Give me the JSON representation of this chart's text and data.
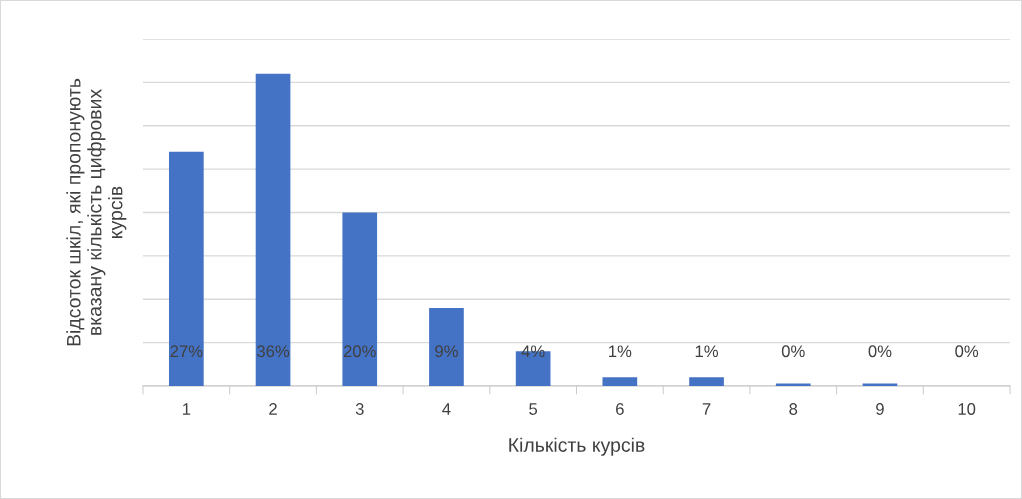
{
  "chart_data": {
    "type": "bar",
    "xlabel": "Кількість курсів",
    "ylabel": "Відсоток шкіл, які пропонують\nвказану кількість цифрових\nкурсів",
    "categories": [
      "1",
      "2",
      "3",
      "4",
      "5",
      "6",
      "7",
      "8",
      "9",
      "10"
    ],
    "values": [
      27,
      36,
      20,
      9,
      4,
      1,
      1,
      0.3,
      0.3,
      0
    ],
    "value_labels": [
      "27%",
      "36%",
      "20%",
      "9%",
      "4%",
      "1%",
      "1%",
      "0%",
      "0%",
      "0%"
    ],
    "color": "#4472c4",
    "ylim": [
      0,
      40
    ],
    "yticks": [
      {
        "value": 0,
        "label": null
      },
      {
        "value": 5,
        "label": null
      },
      {
        "value": 10,
        "label": null
      },
      {
        "value": 15,
        "label": null
      },
      {
        "value": 20,
        "label": null
      },
      {
        "value": 25,
        "label": null
      },
      {
        "value": 30,
        "label": null
      },
      {
        "value": 35,
        "label": null
      },
      {
        "value": 40,
        "label": null
      }
    ],
    "tick_labels": "x",
    "grid": "y"
  }
}
